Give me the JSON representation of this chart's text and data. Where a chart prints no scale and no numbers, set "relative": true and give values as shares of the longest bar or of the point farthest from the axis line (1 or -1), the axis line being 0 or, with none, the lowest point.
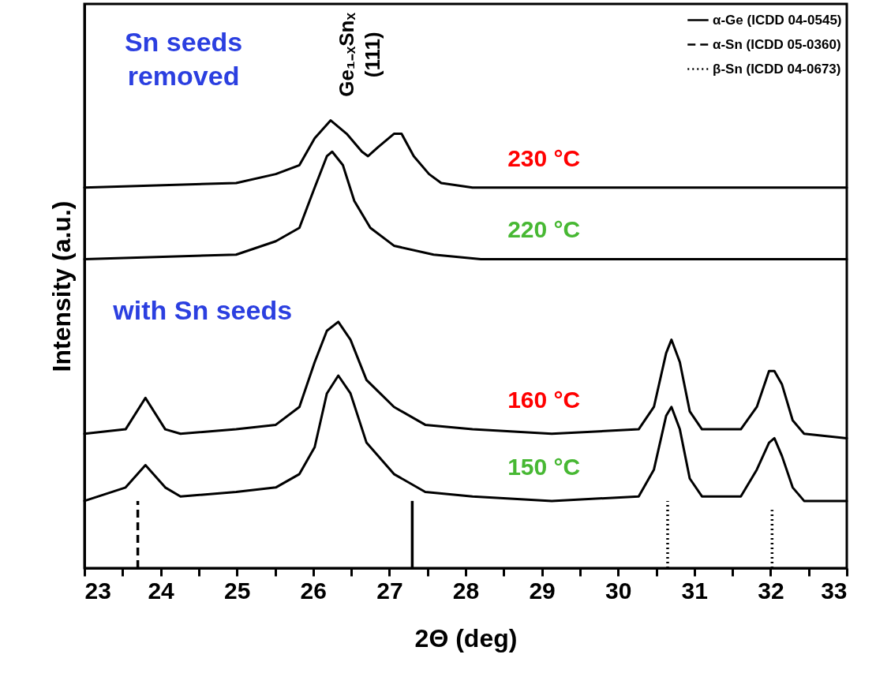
{
  "chart_data": {
    "type": "line",
    "relative": true,
    "xlabel": "2Θ (deg)",
    "ylabel": "Intensity (a.u.)",
    "xlim": [
      23,
      33
    ],
    "xticks": [
      23,
      {
        "value": 23.5,
        "label": null
      },
      24,
      {
        "value": 24.5,
        "label": null
      },
      25,
      {
        "value": 25.5,
        "label": null
      },
      26,
      {
        "value": 26.5,
        "label": null
      },
      27,
      {
        "value": 27.5,
        "label": null
      },
      28,
      {
        "value": 28.5,
        "label": null
      },
      29,
      {
        "value": 29.5,
        "label": null
      },
      30,
      {
        "value": 30.5,
        "label": null
      },
      31,
      {
        "value": 31.5,
        "label": null
      },
      32,
      {
        "value": 32.5,
        "label": null
      },
      33
    ],
    "grid": false,
    "legend": "top right",
    "marker": "none",
    "annotations": [
      "Sn seeds\nremoved",
      "with Sn seeds",
      "Ge₁₋ₓSnₓ\n(111)"
    ],
    "series": [
      {
        "name": "230 °C",
        "color": "#000000",
        "x": [
          23,
          24.99,
          25.51,
          25.82,
          26.02,
          26.23,
          26.44,
          26.64,
          26.72,
          26.85,
          27.06,
          27.16,
          27.32,
          27.52,
          27.68,
          28.09,
          33
        ],
        "values": [
          0.85,
          0.86,
          0.88,
          0.9,
          0.96,
          1,
          0.97,
          0.93,
          0.92,
          0.94,
          0.97,
          0.97,
          0.92,
          0.88,
          0.86,
          0.85,
          0.85
        ]
      },
      {
        "name": "220 °C",
        "color": "#000000",
        "x": [
          23,
          24.99,
          25.51,
          25.82,
          26.02,
          26.18,
          26.25,
          26.39,
          26.54,
          26.75,
          27.06,
          27.58,
          28.2,
          33
        ],
        "values": [
          0.69,
          0.7,
          0.73,
          0.76,
          0.85,
          0.92,
          0.93,
          0.9,
          0.82,
          0.76,
          0.72,
          0.7,
          0.69,
          0.69
        ]
      },
      {
        "name": "160 °C",
        "color": "#000000",
        "x": [
          23,
          23.54,
          23.8,
          24.06,
          24.26,
          24.99,
          25.51,
          25.82,
          26.02,
          26.18,
          26.33,
          26.49,
          26.7,
          27.06,
          27.47,
          28.09,
          29.13,
          30.27,
          30.47,
          30.63,
          30.7,
          30.81,
          30.94,
          31.1,
          31.61,
          31.82,
          31.98,
          32.05,
          32.15,
          32.29,
          32.44,
          33
        ],
        "values": [
          0.3,
          0.31,
          0.38,
          0.31,
          0.3,
          0.31,
          0.32,
          0.36,
          0.46,
          0.53,
          0.55,
          0.51,
          0.42,
          0.36,
          0.32,
          0.31,
          0.3,
          0.31,
          0.36,
          0.48,
          0.51,
          0.46,
          0.35,
          0.31,
          0.31,
          0.36,
          0.44,
          0.44,
          0.41,
          0.33,
          0.3,
          0.29
        ]
      },
      {
        "name": "150 °C",
        "color": "#000000",
        "x": [
          23,
          23.54,
          23.8,
          24.06,
          24.26,
          24.99,
          25.51,
          25.82,
          26.02,
          26.18,
          26.33,
          26.49,
          26.7,
          27.06,
          27.47,
          28.09,
          29.13,
          30.27,
          30.47,
          30.63,
          30.7,
          30.81,
          30.94,
          31.1,
          31.61,
          31.82,
          31.98,
          32.05,
          32.15,
          32.29,
          32.44,
          33
        ],
        "values": [
          0.15,
          0.18,
          0.23,
          0.18,
          0.16,
          0.17,
          0.18,
          0.21,
          0.27,
          0.39,
          0.43,
          0.39,
          0.28,
          0.21,
          0.17,
          0.16,
          0.15,
          0.16,
          0.22,
          0.34,
          0.36,
          0.31,
          0.2,
          0.16,
          0.16,
          0.22,
          0.28,
          0.29,
          0.25,
          0.18,
          0.15,
          0.15
        ]
      },
      {
        "name": "α-Ge (ICDD 04-0545)",
        "color": "#000000",
        "line_style": "solid",
        "x": [
          27.3,
          27.3
        ],
        "values": [
          0,
          0.15
        ]
      },
      {
        "name": "α-Sn (ICDD 05-0360)",
        "color": "#000000",
        "line_style": "dashed",
        "x": [
          23.7,
          23.7
        ],
        "values": [
          0,
          0.15
        ]
      },
      {
        "name": "β-Sn (ICDD 04-0673)",
        "color": "#000000",
        "line_style": "dotted",
        "x": [
          30.65,
          30.65,
          31.3,
          32.02,
          32.02
        ],
        "values": [
          0,
          0.15,
          null,
          0,
          0.13
        ]
      }
    ]
  }
}
